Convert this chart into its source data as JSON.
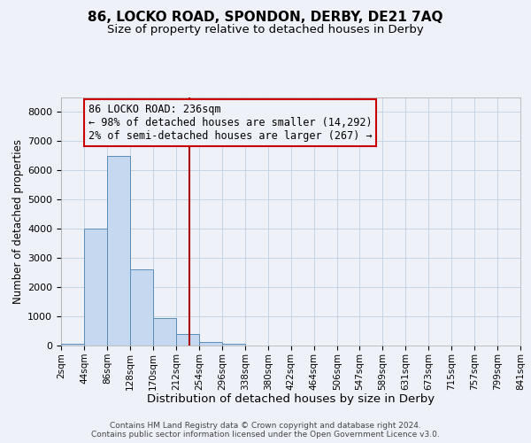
{
  "title": "86, LOCKO ROAD, SPONDON, DERBY, DE21 7AQ",
  "subtitle": "Size of property relative to detached houses in Derby",
  "xlabel": "Distribution of detached houses by size in Derby",
  "ylabel": "Number of detached properties",
  "footer_line1": "Contains HM Land Registry data © Crown copyright and database right 2024.",
  "footer_line2": "Contains public sector information licensed under the Open Government Licence v3.0.",
  "bin_edges": [
    2,
    44,
    86,
    128,
    170,
    212,
    254,
    296,
    338,
    380,
    422,
    464,
    506,
    547,
    589,
    631,
    673,
    715,
    757,
    799,
    841
  ],
  "bar_heights": [
    50,
    4000,
    6500,
    2600,
    950,
    400,
    120,
    50,
    10,
    5,
    2,
    0,
    0,
    0,
    0,
    0,
    0,
    0,
    0,
    0
  ],
  "bar_color": "#c5d8f0",
  "bar_edgecolor": "#5b8db8",
  "grid_color": "#c0cfe0",
  "background_color": "#eef2f8",
  "vline_x": 236,
  "vline_color": "#aa0000",
  "annotation_line1": "86 LOCKO ROAD: 236sqm",
  "annotation_line2": "← 98% of detached houses are smaller (14,292)",
  "annotation_line3": "2% of semi-detached houses are larger (267) →",
  "annotation_box_edgecolor": "#cc0000",
  "annotation_text_color": "#000000",
  "ylim": [
    0,
    8500
  ],
  "yticks": [
    0,
    1000,
    2000,
    3000,
    4000,
    5000,
    6000,
    7000,
    8000
  ],
  "title_fontsize": 11,
  "subtitle_fontsize": 9.5,
  "xlabel_fontsize": 9.5,
  "ylabel_fontsize": 8.5,
  "tick_fontsize": 8,
  "annotation_fontsize": 8.5,
  "footer_fontsize": 6.5
}
